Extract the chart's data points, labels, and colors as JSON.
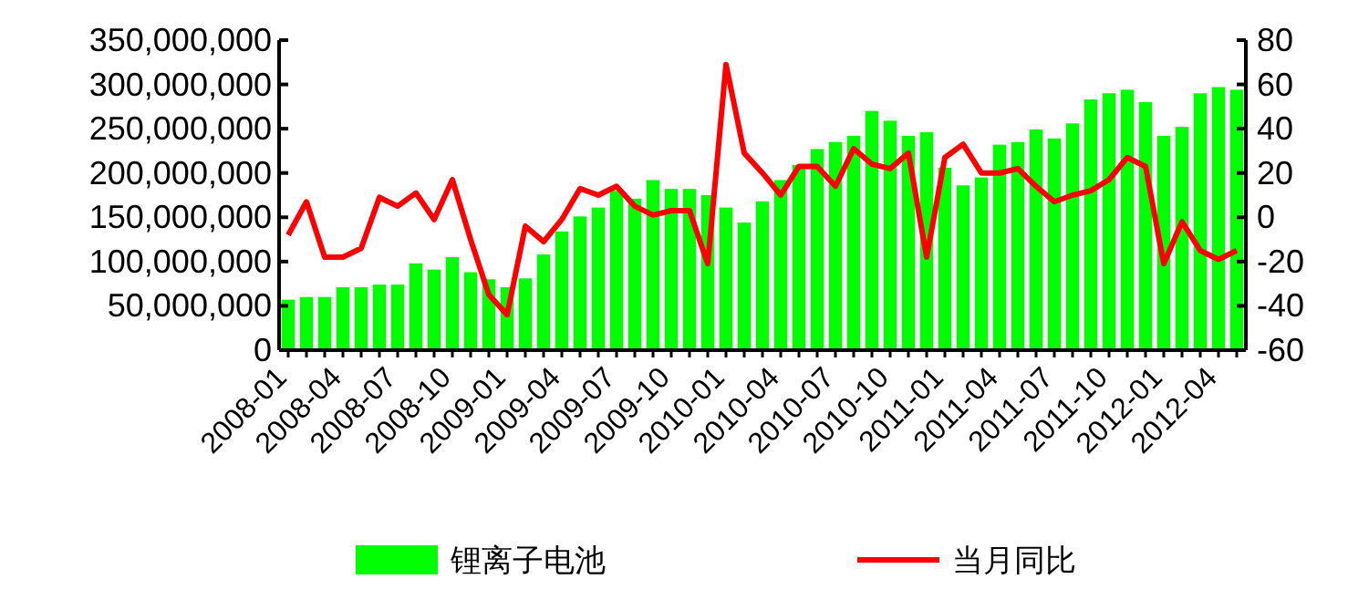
{
  "chart_data": {
    "type": "bar",
    "categories": [
      "2008-01",
      null,
      null,
      "2008-04",
      null,
      null,
      "2008-07",
      null,
      null,
      "2008-10",
      null,
      null,
      "2009-01",
      null,
      null,
      "2009-04",
      null,
      null,
      "2009-07",
      null,
      null,
      "2009-10",
      null,
      null,
      "2010-01",
      null,
      null,
      "2010-04",
      null,
      null,
      "2010-07",
      null,
      null,
      "2010-10",
      null,
      null,
      "2011-01",
      null,
      null,
      "2011-04",
      null,
      null,
      "2011-07",
      null,
      null,
      "2011-10",
      null,
      null,
      "2012-01",
      null,
      null,
      "2012-04",
      null
    ],
    "series": [
      {
        "name": "锂离子电池",
        "color": "#00ff00",
        "values": [
          57000000,
          60000000,
          60000000,
          71000000,
          71000000,
          74000000,
          74000000,
          98000000,
          91000000,
          105000000,
          88000000,
          80000000,
          71000000,
          81000000,
          108000000,
          134000000,
          151000000,
          161000000,
          180000000,
          171000000,
          192000000,
          182000000,
          182000000,
          175000000,
          161000000,
          144000000,
          168000000,
          192000000,
          209000000,
          227000000,
          235000000,
          242000000,
          270000000,
          259000000,
          242000000,
          246000000,
          206000000,
          186000000,
          195000000,
          232000000,
          235000000,
          249000000,
          239000000,
          256000000,
          283000000,
          290000000,
          294000000,
          280000000,
          242000000,
          252000000,
          290000000,
          297000000,
          294000000
        ]
      },
      {
        "name": "当月同比",
        "type": "line",
        "axis": "y2",
        "color": "#ff0000",
        "values": [
          -8,
          7,
          -18,
          -18,
          -14,
          9,
          5,
          11,
          -1,
          17,
          -10,
          -35,
          -44,
          -4,
          -11,
          -1,
          13,
          10,
          14,
          5,
          1,
          3,
          3,
          -21,
          69,
          29,
          20,
          10,
          23,
          23,
          14,
          31,
          24,
          22,
          29,
          -18,
          27,
          33,
          20,
          20,
          22,
          14,
          7,
          10,
          12,
          17,
          27,
          23,
          -21,
          -2,
          -15,
          -19,
          -15
        ]
      }
    ],
    "ylim": [
      0,
      350000000
    ],
    "yticks": [
      {
        "value": 0,
        "label": "0"
      },
      {
        "value": 50000000,
        "label": "50,000,000"
      },
      {
        "value": 100000000,
        "label": "100,000,000"
      },
      {
        "value": 150000000,
        "label": "150,000,000"
      },
      {
        "value": 200000000,
        "label": "200,000,000"
      },
      {
        "value": 250000000,
        "label": "250,000,000"
      },
      {
        "value": 300000000,
        "label": "300,000,000"
      },
      {
        "value": 350000000,
        "label": "350,000,000"
      }
    ],
    "y2lim": [
      -60,
      80
    ],
    "y2ticks": [
      -60,
      -40,
      -20,
      0,
      20,
      40,
      60,
      80
    ],
    "legend": "bottom"
  }
}
